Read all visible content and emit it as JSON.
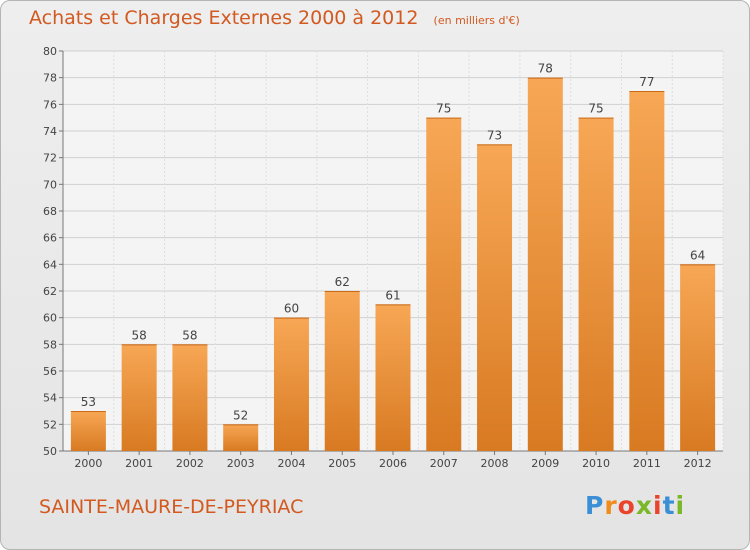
{
  "title": "Achats et Charges Externes 2000 à 2012",
  "subtitle": "(en milliers d'€)",
  "commune": "SAINTE-MAURE-DE-PEYRIAC",
  "logo": {
    "letters": [
      "P",
      "r",
      "o",
      "x",
      "i",
      "t",
      "i"
    ],
    "colors": [
      "#3a8fd6",
      "#f08c1a",
      "#e8452c",
      "#7ab82a",
      "#e8452c",
      "#3a8fd6",
      "#7ab82a"
    ]
  },
  "colors": {
    "bar_top": "#f7a755",
    "bar_bottom": "#d87a22",
    "text": "#d2591f"
  },
  "chart_data": {
    "type": "bar",
    "categories": [
      "2000",
      "2001",
      "2002",
      "2003",
      "2004",
      "2005",
      "2006",
      "2007",
      "2008",
      "2009",
      "2010",
      "2011",
      "2012"
    ],
    "values": [
      53,
      58,
      58,
      52,
      60,
      62,
      61,
      75,
      73,
      78,
      75,
      77,
      64
    ],
    "ylim": [
      50,
      80
    ],
    "yticks": [
      50,
      52,
      54,
      56,
      58,
      60,
      62,
      64,
      66,
      68,
      70,
      72,
      74,
      76,
      78,
      80
    ],
    "grid": true
  }
}
